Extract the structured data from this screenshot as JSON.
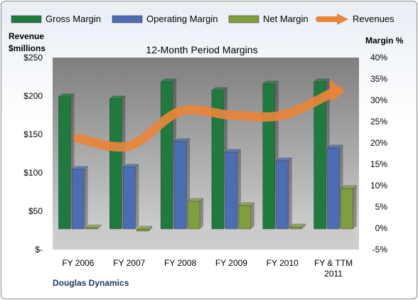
{
  "chart_data": {
    "type": "bar",
    "title": "12-Month Period Margins",
    "company": "Douglas Dynamics",
    "y_left_label_line1": "Revenue",
    "y_left_label_line2": "$millions",
    "y_right_label": "Margin %",
    "categories": [
      [
        "FY 2006"
      ],
      [
        "FY 2007"
      ],
      [
        "FY 2008"
      ],
      [
        "FY 2009"
      ],
      [
        "FY 2010"
      ],
      [
        "FY & TTM",
        "2011"
      ]
    ],
    "left_axis": {
      "min": 0,
      "max": 250,
      "step": 50,
      "tick_labels": [
        "$-",
        "$50",
        "$100",
        "$150",
        "$200",
        "$250"
      ]
    },
    "right_axis": {
      "min": -5,
      "max": 40,
      "step": 5,
      "tick_labels": [
        "-5%",
        "0%",
        "5%",
        "10%",
        "15%",
        "20%",
        "25%",
        "30%",
        "35%",
        "40%"
      ]
    },
    "series": [
      {
        "name": "Gross Margin",
        "axis": "right",
        "kind": "bar",
        "color": "#1e7a3d",
        "values": [
          31.0,
          30.5,
          34.5,
          32.5,
          34.0,
          34.5
        ]
      },
      {
        "name": "Operating Margin",
        "axis": "right",
        "kind": "bar",
        "color": "#4a6db3",
        "values": [
          14.0,
          14.5,
          20.5,
          18.0,
          16.0,
          19.0
        ]
      },
      {
        "name": "Net Margin",
        "axis": "right",
        "kind": "bar",
        "color": "#7f9e3c",
        "values": [
          0.0,
          -0.5,
          6.5,
          5.5,
          0.5,
          9.5
        ]
      },
      {
        "name": "Revenues",
        "axis": "left",
        "kind": "line",
        "color": "#e8843a",
        "values": [
          145,
          135,
          180,
          175,
          175,
          205
        ]
      }
    ],
    "grid": false,
    "legend": "top"
  }
}
